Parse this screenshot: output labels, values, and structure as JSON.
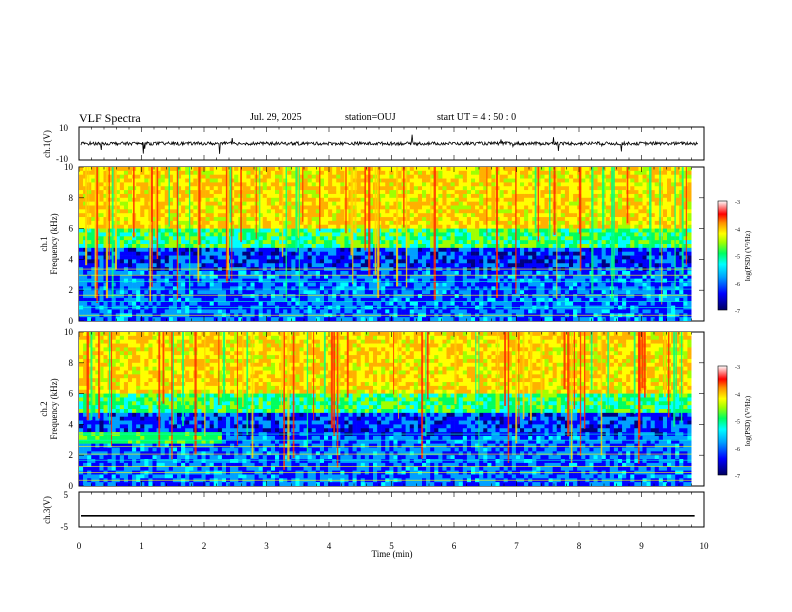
{
  "header": {
    "title": "VLF Spectra",
    "date": "Jul. 29, 2025",
    "station": "station=OUJ",
    "start_ut": "start UT =  4 : 50 : 0"
  },
  "chart_data": [
    {
      "type": "line",
      "panel": "ch1-waveform",
      "ylabel": "ch.1(V)",
      "ylim": [
        -10,
        10
      ],
      "y_ticks": [
        "10",
        "-10"
      ],
      "xlim": [
        0,
        10
      ],
      "baseline": 0,
      "description_values": {
        "typical_amplitude": 1,
        "spike_max": 3
      }
    },
    {
      "type": "heatmap",
      "panel": "ch1-spectrogram",
      "ylabel": "ch.1\nFrequency (kHz)",
      "ylabel_channel": "ch.1",
      "ylabel_freq": "Frequency (kHz)",
      "ylim": [
        0,
        10
      ],
      "y_ticks": [
        "0",
        "2",
        "4",
        "6",
        "8",
        "10"
      ],
      "xlim": [
        0,
        9.8
      ],
      "colorbar": {
        "label": "log(PSD) (V²/Hz)",
        "range": [
          -7,
          -3
        ],
        "ticks": [
          "-3",
          "-4",
          "-5",
          "-6",
          "-7"
        ]
      }
    },
    {
      "type": "heatmap",
      "panel": "ch2-spectrogram",
      "ylabel_channel": "ch.2",
      "ylabel_freq": "Frequency (kHz)",
      "ylim": [
        0,
        10
      ],
      "y_ticks": [
        "0",
        "2",
        "4",
        "6",
        "8",
        "10"
      ],
      "xlim": [
        0,
        9.8
      ],
      "colorbar": {
        "label": "log(PSD) (V²/Hz)",
        "range": [
          -7,
          -3
        ],
        "ticks": [
          "-3",
          "-4",
          "-5",
          "-6",
          "-7"
        ]
      }
    },
    {
      "type": "line",
      "panel": "ch3-waveform",
      "ylabel": "ch.3(V)",
      "ylim": [
        -5,
        5
      ],
      "y_ticks": [
        "5",
        "0",
        "-5"
      ],
      "xlim": [
        0,
        10
      ],
      "constant_value": -1.8
    }
  ],
  "xaxis": {
    "label": "Time (min)",
    "ticks": [
      "0",
      "1",
      "2",
      "3",
      "4",
      "5",
      "6",
      "7",
      "8",
      "9",
      "10"
    ]
  },
  "colors": {
    "scale": [
      "#000080",
      "#0000ff",
      "#00a0ff",
      "#00ffff",
      "#00ff60",
      "#a0ff00",
      "#ffff00",
      "#ffb000",
      "#ff2000",
      "#ffffff"
    ]
  }
}
